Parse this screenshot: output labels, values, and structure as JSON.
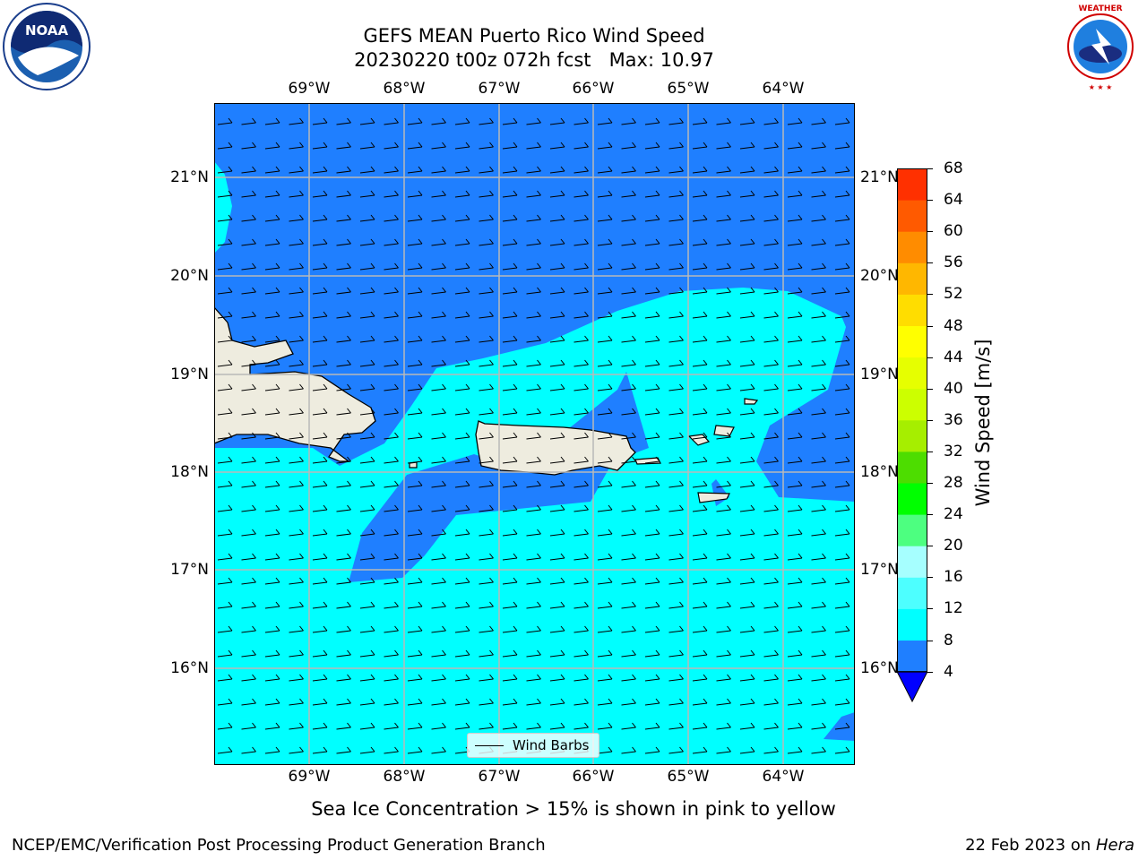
{
  "header": {
    "title_line1": "GEFS MEAN Puerto Rico Wind Speed",
    "title_line2": "20230220 t00z 072h fcst   Max: 10.97"
  },
  "map": {
    "top_lon_labels": [
      "69°W",
      "68°W",
      "67°W",
      "66°W",
      "65°W",
      "64°W"
    ],
    "bottom_lon_labels": [
      "69°W",
      "68°W",
      "67°W",
      "66°W",
      "65°W",
      "64°W"
    ],
    "left_lat_labels": [
      "21°N",
      "20°N",
      "19°N",
      "18°N",
      "17°N",
      "16°N"
    ],
    "right_lat_labels": [
      "21°N",
      "20°N",
      "19°N",
      "18°N",
      "17°N",
      "16°N"
    ],
    "legend_label": "Wind Barbs",
    "colors": {
      "ocean_blue": "#1f7fff",
      "cyan": "#00ffff",
      "land": "#eeecdf"
    }
  },
  "colorbar": {
    "label": "Wind Speed [m/s]",
    "ticks": [
      "4",
      "8",
      "12",
      "16",
      "20",
      "24",
      "28",
      "32",
      "36",
      "40",
      "44",
      "48",
      "52",
      "56",
      "60",
      "64",
      "68"
    ],
    "colors": [
      "#1f7fff",
      "#00ffff",
      "#4dffff",
      "#a6ffff",
      "#4dff80",
      "#00ff00",
      "#4ddd00",
      "#a6ee00",
      "#ccff00",
      "#e6ff00",
      "#ffff00",
      "#ffdd00",
      "#ffb700",
      "#ff8c00",
      "#ff5a00",
      "#ff3000",
      "#ff0000"
    ],
    "extend_color": "#0000ff"
  },
  "caption": "Sea Ice Concentration > 15% is shown in pink to yellow",
  "footer": {
    "left": "NCEP/EMC/Verification Post Processing Product Generation Branch",
    "right_prefix": "22 Feb 2023 on ",
    "right_machine": "Hera"
  },
  "logos": {
    "left": "NOAA",
    "right": "NATIONAL WEATHER SERVICE"
  }
}
